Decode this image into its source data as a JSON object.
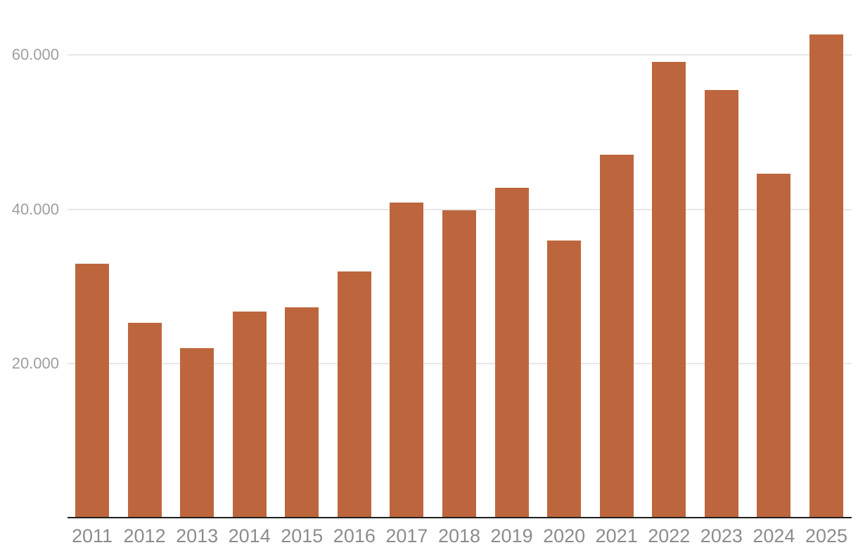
{
  "chart_data": {
    "type": "bar",
    "title": "",
    "xlabel": "",
    "ylabel": "",
    "categories": [
      "2011",
      "2012",
      "2013",
      "2014",
      "2015",
      "2016",
      "2017",
      "2018",
      "2019",
      "2020",
      "2021",
      "2022",
      "2023",
      "2024",
      "2025"
    ],
    "values": [
      32900,
      25300,
      22000,
      26700,
      27300,
      31900,
      40900,
      39900,
      42800,
      35900,
      47100,
      59100,
      55500,
      44600,
      62700
    ],
    "ylim": [
      0,
      65000
    ],
    "yticks": [
      {
        "value": 20000,
        "label": "20.000"
      },
      {
        "value": 40000,
        "label": "40.000"
      },
      {
        "value": 60000,
        "label": "60.000"
      }
    ],
    "grid": "horizontal",
    "legend": "none",
    "number_format": "dot-as-thousands-separator",
    "colors": {
      "bar": "#bd663d",
      "gridline": "#e7e7e7",
      "axis_line": "#1f1f1f",
      "ytick_label": "#9e9e9e",
      "xtick_label": "#8c8c8c",
      "background": "#ffffff"
    }
  }
}
